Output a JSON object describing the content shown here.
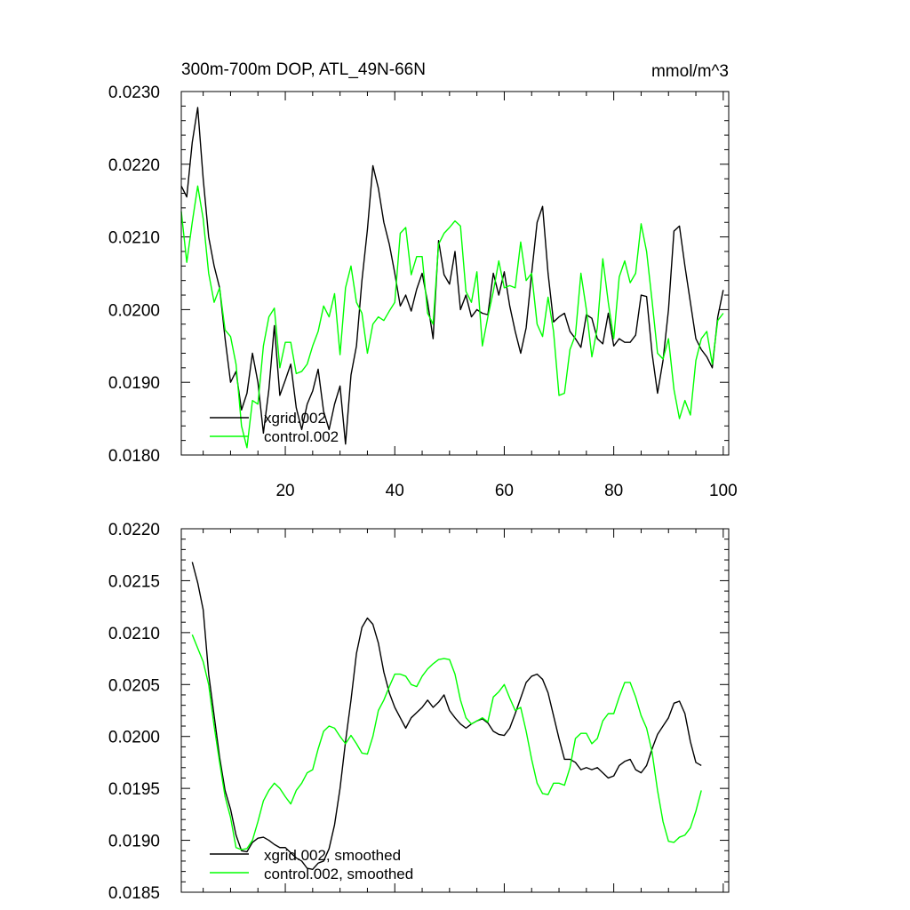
{
  "chart_data": [
    {
      "type": "line",
      "title": "300m-700m DOP, ATL_49N-66N",
      "units": "mmol/m^3",
      "xlim": [
        1,
        101
      ],
      "ylim": [
        0.018,
        0.023
      ],
      "xticks": [
        20,
        40,
        60,
        80,
        100
      ],
      "xtick_labels": [
        "20",
        "40",
        "60",
        "80",
        "100"
      ],
      "yticks": [
        0.018,
        0.019,
        0.02,
        0.021,
        0.022,
        0.023
      ],
      "ytick_labels": [
        "0.0180",
        "0.0190",
        "0.0200",
        "0.0210",
        "0.0220",
        "0.0230"
      ],
      "x_start": 1,
      "series": [
        {
          "name": "xgrid.002",
          "color": "#000000",
          "values": [
            0.0217,
            0.02155,
            0.0223,
            0.02278,
            0.0218,
            0.021,
            0.0206,
            0.0203,
            0.0196,
            0.019,
            0.01915,
            0.01862,
            0.01885,
            0.0194,
            0.019,
            0.0183,
            0.0189,
            0.01978,
            0.01882,
            0.01903,
            0.01925,
            0.01865,
            0.01835,
            0.0187,
            0.01888,
            0.01918,
            0.0186,
            0.01835,
            0.0187,
            0.01895,
            0.01815,
            0.0191,
            0.0195,
            0.0204,
            0.0211,
            0.02198,
            0.02167,
            0.0212,
            0.0209,
            0.0205,
            0.02005,
            0.0202,
            0.01998,
            0.02028,
            0.0205,
            0.0201,
            0.0196,
            0.02095,
            0.02048,
            0.02035,
            0.0208,
            0.02,
            0.0202,
            0.0199,
            0.02,
            0.01995,
            0.01993,
            0.0205,
            0.0202,
            0.02052,
            0.02005,
            0.0197,
            0.0194,
            0.01975,
            0.0205,
            0.0212,
            0.02142,
            0.0205,
            0.01983,
            0.0199,
            0.01995,
            0.0197,
            0.0196,
            0.01948,
            0.01993,
            0.01988,
            0.0196,
            0.01953,
            0.01995,
            0.0195,
            0.0196,
            0.01955,
            0.01955,
            0.01965,
            0.0202,
            0.02018,
            0.0194,
            0.01885,
            0.0193,
            0.02,
            0.02108,
            0.02115,
            0.0206,
            0.0201,
            0.0196,
            0.01945,
            0.01935,
            0.0192,
            0.0199,
            0.02027
          ]
        },
        {
          "name": "control.002",
          "color": "#00ff00",
          "values": [
            0.02135,
            0.02065,
            0.0212,
            0.0217,
            0.02125,
            0.0205,
            0.0201,
            0.0203,
            0.01972,
            0.01963,
            0.01925,
            0.0184,
            0.0181,
            0.01875,
            0.0187,
            0.0195,
            0.0199,
            0.02002,
            0.0192,
            0.01955,
            0.01955,
            0.01912,
            0.01915,
            0.01925,
            0.0195,
            0.0197,
            0.02005,
            0.0199,
            0.02022,
            0.01938,
            0.0203,
            0.0206,
            0.0201,
            0.01995,
            0.0194,
            0.0198,
            0.0199,
            0.01985,
            0.01998,
            0.0201,
            0.02105,
            0.02113,
            0.02048,
            0.02073,
            0.02073,
            0.01995,
            0.0198,
            0.0209,
            0.02105,
            0.02113,
            0.02122,
            0.02115,
            0.02025,
            0.0201,
            0.02052,
            0.0195,
            0.0199,
            0.02025,
            0.02067,
            0.0203,
            0.02033,
            0.0203,
            0.02093,
            0.0204,
            0.0205,
            0.0198,
            0.01963,
            0.02017,
            0.0197,
            0.01882,
            0.01885,
            0.01945,
            0.01965,
            0.0205,
            0.02,
            0.01935,
            0.01975,
            0.0207,
            0.0201,
            0.0196,
            0.02045,
            0.02067,
            0.02037,
            0.0205,
            0.02118,
            0.0208,
            0.02012,
            0.0194,
            0.01932,
            0.0196,
            0.0189,
            0.0185,
            0.01875,
            0.01855,
            0.0193,
            0.0196,
            0.0197,
            0.01925,
            0.01985,
            0.01995
          ]
        }
      ]
    },
    {
      "type": "line",
      "xlim": [
        1,
        101
      ],
      "ylim": [
        0.0185,
        0.022
      ],
      "xticks": [
        20,
        40,
        60,
        80,
        100
      ],
      "yticks": [
        0.0185,
        0.019,
        0.0195,
        0.02,
        0.0205,
        0.021,
        0.0215,
        0.022
      ],
      "ytick_labels": [
        "0.0185",
        "0.0190",
        "0.0195",
        "0.0200",
        "0.0205",
        "0.0210",
        "0.0215",
        "0.0220"
      ],
      "x_start": 3,
      "series": [
        {
          "name": "xgrid.002, smoothed",
          "color": "#000000",
          "values": [
            0.02168,
            0.02148,
            0.02122,
            0.0206,
            0.0202,
            0.0198,
            0.01948,
            0.0193,
            0.01905,
            0.0189,
            0.01889,
            0.01898,
            0.01902,
            0.01903,
            0.019,
            0.01896,
            0.01893,
            0.01893,
            0.01888,
            0.01883,
            0.0188,
            0.01873,
            0.01872,
            0.01878,
            0.0188,
            0.01892,
            0.01915,
            0.0195,
            0.01995,
            0.02035,
            0.0208,
            0.02105,
            0.02114,
            0.02108,
            0.0209,
            0.02062,
            0.02042,
            0.02028,
            0.02018,
            0.02008,
            0.02018,
            0.02023,
            0.02028,
            0.02035,
            0.02028,
            0.02033,
            0.0204,
            0.02025,
            0.02018,
            0.02012,
            0.02008,
            0.02012,
            0.02015,
            0.02017,
            0.02013,
            0.02005,
            0.02002,
            0.02001,
            0.02008,
            0.02022,
            0.02037,
            0.02052,
            0.02058,
            0.0206,
            0.02055,
            0.02042,
            0.0202,
            0.01998,
            0.01978,
            0.01978,
            0.01975,
            0.01968,
            0.0197,
            0.01968,
            0.0197,
            0.01965,
            0.0196,
            0.01962,
            0.01972,
            0.01976,
            0.01978,
            0.01968,
            0.01965,
            0.01972,
            0.01988,
            0.02002,
            0.0201,
            0.02018,
            0.02032,
            0.02034,
            0.02022,
            0.01995,
            0.01975,
            0.01972
          ]
        },
        {
          "name": "control.002, smoothed",
          "color": "#00ff00",
          "values": [
            0.02098,
            0.02085,
            0.02072,
            0.0205,
            0.0201,
            0.01975,
            0.01942,
            0.01922,
            0.01893,
            0.01891,
            0.01892,
            0.019,
            0.01918,
            0.01938,
            0.01948,
            0.01955,
            0.0195,
            0.01942,
            0.01935,
            0.01948,
            0.01955,
            0.01965,
            0.01968,
            0.01988,
            0.02005,
            0.0201,
            0.02008,
            0.02,
            0.01993,
            0.02001,
            0.01993,
            0.01984,
            0.01983,
            0.02,
            0.02025,
            0.02035,
            0.02048,
            0.0206,
            0.0206,
            0.02058,
            0.0205,
            0.02048,
            0.02058,
            0.02065,
            0.0207,
            0.02074,
            0.02075,
            0.02074,
            0.0206,
            0.02035,
            0.02018,
            0.02012,
            0.02015,
            0.02018,
            0.02014,
            0.02038,
            0.02043,
            0.0205,
            0.02037,
            0.02025,
            0.02028,
            0.02005,
            0.01978,
            0.01955,
            0.01945,
            0.01944,
            0.01955,
            0.01955,
            0.01953,
            0.0197,
            0.01998,
            0.02003,
            0.02003,
            0.01993,
            0.01998,
            0.02015,
            0.02022,
            0.02022,
            0.02038,
            0.02052,
            0.02052,
            0.02038,
            0.0202,
            0.02008,
            0.01985,
            0.01948,
            0.01918,
            0.01899,
            0.01898,
            0.01903,
            0.01905,
            0.01912,
            0.01928,
            0.01948
          ]
        }
      ]
    }
  ]
}
